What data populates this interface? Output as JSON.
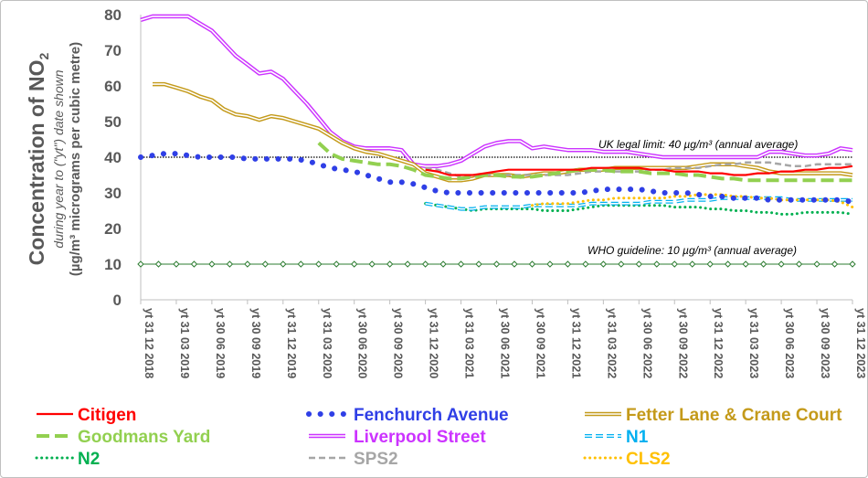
{
  "chart_data": {
    "type": "line",
    "ylabel": {
      "main": "Concentration of NO",
      "sub": "2",
      "line2": "during year to (\"yt\") date shown",
      "line3": "(µg/m³ micrograms per cubic metre)"
    },
    "ylim": [
      0,
      80
    ],
    "yticks": [
      "0",
      "10",
      "20",
      "30",
      "40",
      "50",
      "60",
      "70",
      "80"
    ],
    "xticks": [
      "yt 31 12 2018",
      "yt 31 03 2019",
      "yt 30 06 2019",
      "yt 30 09 2019",
      "yt 31 12 2019",
      "yt 31 03 2020",
      "yt 30 06 2020",
      "yt 30 09 2020",
      "yt 31 12 2020",
      "yt 31 03 2021",
      "yt 30 06 2021",
      "yt 30 09 2021",
      "yt 31 12 2021",
      "yt 31 03 2022",
      "yt 30 06 2022",
      "yt 30 09 2022",
      "yt 31 12 2022",
      "yt 31 03 2023",
      "yt 30 06 2023",
      "yt 30 09 2023",
      "yt 31 12 2023"
    ],
    "x_unit": "months",
    "reference_lines": [
      {
        "value": 40,
        "label": "UK legal limit:  40 µg/m³ (annual average)",
        "color": "#000000"
      },
      {
        "value": 10,
        "label": "WHO guideline:  10 µg/m³ (annual average)",
        "color": "#2e7d32"
      }
    ],
    "legend_position": "bottom",
    "series": [
      {
        "name": "Citigen",
        "color": "#ff0000",
        "style": "solid",
        "x": [
          24,
          25,
          26,
          27,
          28,
          29,
          30,
          31,
          32,
          33,
          34,
          35,
          36,
          37,
          38,
          39,
          40,
          41,
          42,
          43,
          44,
          45,
          46,
          47,
          48,
          49,
          50,
          51,
          52,
          53,
          54,
          55,
          56,
          57,
          58,
          59,
          60
        ],
        "y": [
          36.5,
          36,
          35,
          35,
          35,
          35.5,
          36,
          36.5,
          36.5,
          36.5,
          36.5,
          36.5,
          36.5,
          36.5,
          37,
          37,
          37,
          37,
          37,
          36.5,
          36.5,
          36,
          36,
          36,
          35.5,
          35.5,
          35,
          35,
          35.5,
          35.5,
          36,
          36,
          36.5,
          36.5,
          37,
          37,
          37.5
        ]
      },
      {
        "name": "Fenchurch Avenue",
        "color": "#2f3fe6",
        "style": "bigdot",
        "x": [
          0,
          1,
          2,
          3,
          4,
          5,
          6,
          7,
          8,
          9,
          10,
          11,
          12,
          13,
          14,
          15,
          16,
          17,
          18,
          19,
          20,
          21,
          22,
          23,
          24,
          25,
          26,
          27,
          28,
          29,
          30,
          31,
          32,
          33,
          34,
          35,
          36,
          37,
          38,
          39,
          40,
          41,
          42,
          43,
          44,
          45,
          46,
          47,
          48,
          49,
          50,
          51,
          52,
          53,
          54,
          55,
          56,
          57,
          58,
          59,
          60
        ],
        "y": [
          40,
          40.5,
          41,
          41,
          40.5,
          40,
          40,
          40,
          40,
          39.5,
          39.5,
          39.5,
          39.5,
          39.5,
          39,
          38,
          37,
          36.5,
          36,
          35,
          34,
          33,
          33,
          32.5,
          31.5,
          30.5,
          30,
          30,
          30,
          30,
          30,
          30,
          30,
          30,
          30,
          30,
          30,
          30,
          30.5,
          31,
          31,
          31,
          31,
          30.5,
          30,
          30,
          30,
          29.5,
          29,
          29,
          28.5,
          28.5,
          28.5,
          28,
          28,
          28,
          28,
          28,
          28,
          28,
          27.5
        ]
      },
      {
        "name": "Fetter Lane & Crane Court",
        "color": "#c49a1a",
        "style": "double",
        "x": [
          1,
          2,
          3,
          4,
          5,
          6,
          7,
          8,
          9,
          10,
          11,
          12,
          13,
          14,
          15,
          16,
          17,
          18,
          19,
          20,
          21,
          22,
          23,
          24,
          25,
          26,
          27,
          28,
          29,
          30,
          31,
          32,
          33,
          34,
          35,
          36,
          37,
          38,
          39,
          40,
          41,
          42,
          43,
          44,
          45,
          46,
          47,
          48,
          49,
          50,
          51,
          52,
          53,
          54,
          55,
          56,
          57,
          58,
          59,
          60
        ],
        "y": [
          60.5,
          60.5,
          59.5,
          58.5,
          57,
          56,
          53.5,
          52,
          51.5,
          50.5,
          51.5,
          51,
          50,
          49,
          48,
          46,
          44,
          42.5,
          41.5,
          41,
          40,
          39,
          38,
          35.5,
          34.5,
          33.5,
          33.5,
          34,
          35,
          35,
          35,
          34.5,
          35,
          35.5,
          35.5,
          36,
          36.5,
          36.5,
          36.5,
          37,
          37,
          37,
          37,
          37,
          37,
          37,
          37.5,
          38,
          38,
          38,
          37.5,
          37,
          36,
          35.5,
          35.5,
          35.5,
          35.5,
          35.5,
          35.5,
          35
        ]
      },
      {
        "name": "Goodmans Yard",
        "color": "#92d050",
        "style": "dash",
        "x": [
          15,
          16,
          17,
          18,
          19,
          20,
          21,
          22,
          23,
          24,
          25,
          26,
          27,
          28,
          29,
          30,
          31,
          32,
          33,
          34,
          35,
          36,
          37,
          38,
          39,
          40,
          41,
          42,
          43,
          44,
          45,
          46,
          47,
          48,
          49,
          50,
          51,
          52,
          53,
          54,
          55,
          56,
          57,
          58,
          59,
          60
        ],
        "y": [
          44,
          41,
          39.5,
          39,
          38.5,
          38,
          38,
          37.5,
          36.5,
          35,
          34.5,
          34,
          34,
          34.5,
          35,
          35,
          34.5,
          34.5,
          34.5,
          35,
          35.5,
          36,
          36.5,
          36.5,
          36.5,
          36,
          36,
          36,
          35.5,
          35.5,
          35.5,
          35,
          35,
          34.5,
          34,
          34,
          33.5,
          33.5,
          33.5,
          33.5,
          33.5,
          33.5,
          33.5,
          33.5,
          33.5,
          33.5
        ]
      },
      {
        "name": "Liverpool Street",
        "color": "#cc33ff",
        "style": "double",
        "x": [
          0,
          1,
          2,
          3,
          4,
          5,
          6,
          7,
          8,
          9,
          10,
          11,
          12,
          13,
          14,
          15,
          16,
          17,
          18,
          19,
          20,
          21,
          22,
          23,
          24,
          25,
          26,
          27,
          28,
          29,
          30,
          31,
          32,
          33,
          34,
          35,
          36,
          37,
          38,
          39,
          40,
          41,
          42,
          43,
          44,
          45,
          46,
          47,
          48,
          49,
          50,
          51,
          52,
          53,
          54,
          55,
          56,
          57,
          58,
          59,
          60
        ],
        "y": [
          78.5,
          79.5,
          79.5,
          79.5,
          79.5,
          77.5,
          75.5,
          72,
          68.5,
          66,
          63.5,
          64,
          62,
          58.5,
          55,
          51,
          47,
          44.5,
          43,
          42.5,
          42.5,
          42.5,
          42,
          38,
          37.5,
          37.5,
          38,
          39,
          41,
          43,
          44,
          44.5,
          44.5,
          42.5,
          43,
          42.5,
          42,
          42,
          42,
          41.5,
          41.5,
          41.5,
          41,
          40.5,
          40,
          40,
          40,
          40,
          40,
          40,
          40,
          40,
          40,
          41.5,
          41.5,
          41,
          40.5,
          40.5,
          41,
          42.5,
          42
        ]
      },
      {
        "name": "N1",
        "color": "#00b0f0",
        "style": "doubledash",
        "x": [
          24,
          25,
          26,
          27,
          28,
          29,
          30,
          31,
          32,
          33,
          34,
          35,
          36,
          37,
          38,
          39,
          40,
          41,
          42,
          43,
          44,
          45,
          46,
          47,
          48,
          49,
          50,
          51,
          52,
          53,
          54,
          55,
          56,
          57,
          58,
          59,
          60
        ],
        "y": [
          27,
          26.5,
          26,
          25.5,
          25.5,
          26,
          26,
          26,
          26,
          26.5,
          26.5,
          26.5,
          26.5,
          26.5,
          27,
          27,
          27,
          27,
          27,
          27.5,
          27.5,
          27.5,
          28,
          28,
          28,
          28.5,
          28.5,
          28.5,
          28.5,
          28.5,
          28.5,
          28,
          28,
          28,
          28,
          28,
          28
        ]
      },
      {
        "name": "N2",
        "color": "#00b050",
        "style": "smalldot",
        "x": [
          24,
          25,
          26,
          27,
          28,
          29,
          30,
          31,
          32,
          33,
          34,
          35,
          36,
          37,
          38,
          39,
          40,
          41,
          42,
          43,
          44,
          45,
          46,
          47,
          48,
          49,
          50,
          51,
          52,
          53,
          54,
          55,
          56,
          57,
          58,
          59,
          60
        ],
        "y": [
          27,
          26.5,
          26,
          25.5,
          25,
          25.5,
          25.5,
          25.5,
          25.5,
          25.5,
          25,
          25,
          25,
          25.5,
          26,
          26.5,
          26.5,
          26.5,
          26.5,
          26.5,
          26.5,
          26,
          26,
          26,
          25.5,
          25.5,
          25,
          25,
          24.5,
          24.5,
          24,
          24,
          24.5,
          24.5,
          24.5,
          24.5,
          24
        ]
      },
      {
        "name": "SPS2",
        "color": "#a6a6a6",
        "style": "dash",
        "x": [
          24,
          25,
          26,
          27,
          28,
          29,
          30,
          31,
          32,
          33,
          34,
          35,
          36,
          37,
          38,
          39,
          40,
          41,
          42,
          43,
          44,
          45,
          46,
          47,
          48,
          49,
          50,
          51,
          52,
          53,
          54,
          55,
          56,
          57,
          58,
          59,
          60
        ],
        "y": [
          37,
          36.5,
          35.5,
          34.5,
          34.5,
          35,
          35,
          35,
          35,
          35,
          35,
          35,
          35,
          35.5,
          36,
          36,
          36,
          36,
          36,
          36.5,
          36.5,
          37,
          37,
          37,
          37.5,
          38,
          38,
          38.5,
          38.5,
          38.5,
          38,
          37.5,
          37.5,
          38,
          38,
          38,
          38
        ]
      },
      {
        "name": "CLS2",
        "color": "#ffc000",
        "style": "smalldot",
        "x": [
          33,
          34,
          35,
          36,
          37,
          38,
          39,
          40,
          41,
          42,
          43,
          44,
          45,
          46,
          47,
          48,
          49,
          50,
          51,
          52,
          53,
          54,
          55,
          56,
          57,
          58,
          59,
          60
        ],
        "y": [
          26.5,
          27,
          27,
          27,
          27.5,
          28,
          28,
          28.5,
          28.5,
          28.5,
          28.5,
          28.5,
          29,
          29,
          29.5,
          29.5,
          29.5,
          29,
          29,
          28.5,
          28.5,
          28,
          28,
          28,
          28,
          28,
          27.5,
          26
        ]
      }
    ]
  }
}
